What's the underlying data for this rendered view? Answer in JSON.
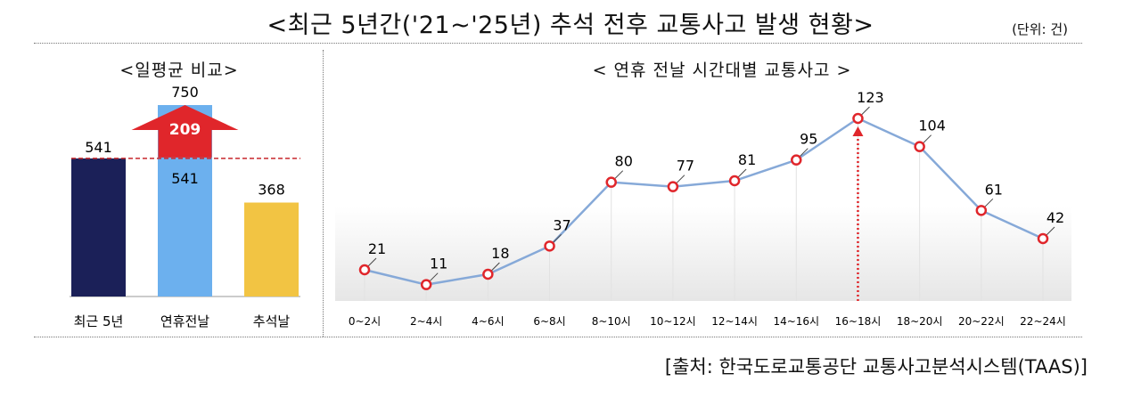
{
  "title": "<최근 5년간('21~'25년) 추석 전후 교통사고 발생 현황>",
  "unit": "(단위: 건)",
  "source": "[출처: 한국도로교통공단 교통사고분석시스템(TAAS)]",
  "chart_data": [
    {
      "type": "bar",
      "title": "<일평균 비교>",
      "categories": [
        "최근 5년",
        "연휴전날",
        "추석날"
      ],
      "values": [
        541,
        750,
        368
      ],
      "baseline_label": "541",
      "increase": {
        "category": "연휴전날",
        "value": 209
      },
      "colors": [
        "#1b2058",
        "#6cb0ee",
        "#f2c443"
      ],
      "reference_line": 541,
      "grid": false,
      "legend": "none"
    },
    {
      "type": "line",
      "title": "< 연휴 전날 시간대별 교통사고 >",
      "categories": [
        "0~2시",
        "2~4시",
        "4~6시",
        "6~8시",
        "8~10시",
        "10~12시",
        "12~14시",
        "14~16시",
        "16~18시",
        "18~20시",
        "20~22시",
        "22~24시"
      ],
      "values": [
        21,
        11,
        18,
        37,
        80,
        77,
        81,
        95,
        123,
        104,
        61,
        42
      ],
      "highlight": "16~18시",
      "line_color": "#86a9d8",
      "marker_color": "#e0262b",
      "grid": "vertical",
      "legend": "none"
    }
  ]
}
